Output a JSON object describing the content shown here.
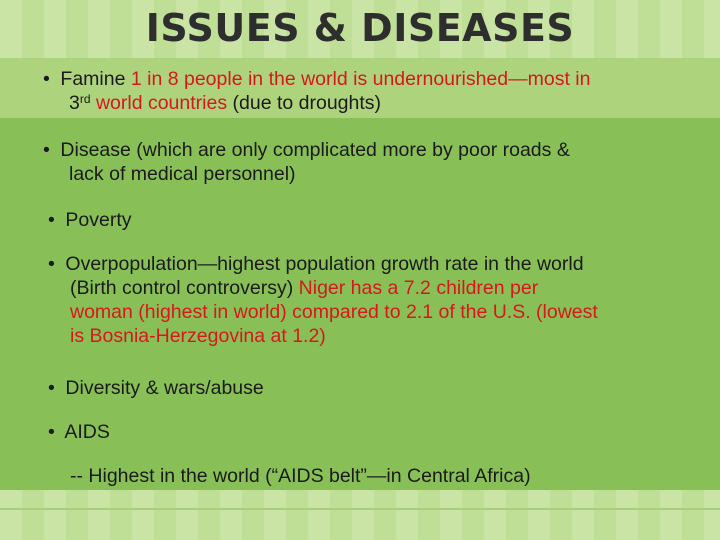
{
  "slide": {
    "title": "ISSUES & DISEASES",
    "bullet_char": "•",
    "items": [
      {
        "lead": "Famine ",
        "red": "1 in 8 people in the world is undernourished—most in",
        "line2_a": "3",
        "line2_sup": "rd",
        "line2_red": " world countries",
        "line2_b": " (due to droughts)"
      },
      {
        "line1": "Disease (which are only complicated more by poor roads &",
        "line2": "lack of medical personnel)"
      },
      {
        "line1": "Poverty"
      },
      {
        "line1": "Overpopulation—highest population growth rate in the world",
        "line2_black": "(Birth control controversy) ",
        "line2_red": "Niger has a 7.2 children per",
        "line3_red": "woman (highest in world) compared to 2.1 of the U.S. (lowest",
        "line4_red": "is Bosnia-Herzegovina at 1.2)"
      },
      {
        "line1": "Diversity & wars/abuse"
      },
      {
        "line1": "AIDS"
      }
    ],
    "sub_note": "-- Highest in the world (“AIDS belt”—in Central Africa)"
  },
  "colors": {
    "title": "#2e2e2e",
    "text": "#1a1a1a",
    "highlight_red": "#d8171c",
    "main_green": "#88c057",
    "light_green": "#aed37d",
    "pale_green": "#c9e4a4"
  }
}
